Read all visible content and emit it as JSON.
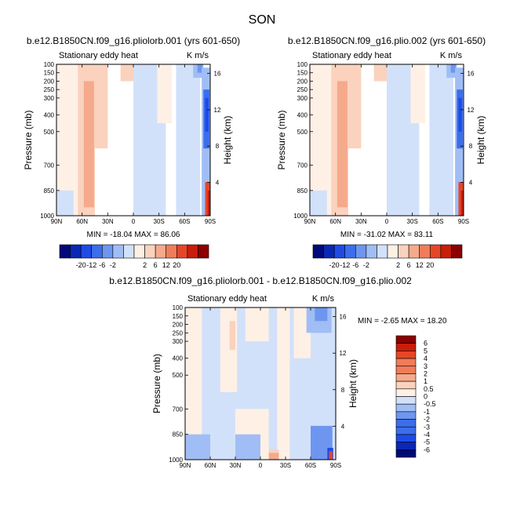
{
  "figure_title": "SON",
  "colormap": [
    "#000a78",
    "#0a28b4",
    "#1e4be6",
    "#3c6eeb",
    "#6e96f0",
    "#a0bef5",
    "#d2e1fa",
    "#fff0e6",
    "#fad2be",
    "#f5aa8c",
    "#f07d5a",
    "#e64628",
    "#c81e0a",
    "#8c0000"
  ],
  "chart_data": [
    {
      "type": "heatmap",
      "name": "panel-pliolorb",
      "title": "b.e12.B1850CN.f09_g16.pliolorb.001 (yrs 601-650)",
      "left_label": "Stationary eddy heat",
      "right_label": "K m/s",
      "ylabel": "Pressure (mb)",
      "ylabel_right": "Height (km)",
      "xticks": [
        "90N",
        "60N",
        "30N",
        "0",
        "30S",
        "60S",
        "90S"
      ],
      "yticks": [
        "100",
        "150",
        "200",
        "250",
        "300",
        "400",
        "500",
        "700",
        "850",
        "1000"
      ],
      "yticks_right": [
        "16",
        "12",
        "8",
        "4"
      ],
      "stats": "MIN = -18.04   MAX = 86.06",
      "colorbar_ticks": [
        "-20",
        "-12",
        "-6",
        "-2",
        "2",
        "6",
        "12",
        "20"
      ],
      "cells": [
        {
          "x": [
            0,
            25
          ],
          "y": [
            100,
            1000
          ],
          "level": 7
        },
        {
          "x": [
            25,
            45
          ],
          "y": [
            100,
            1000
          ],
          "level": 8
        },
        {
          "x": [
            32,
            44
          ],
          "y": [
            200,
            950
          ],
          "level": 9
        },
        {
          "x": [
            45,
            60
          ],
          "y": [
            100,
            600
          ],
          "level": 8
        },
        {
          "x": [
            75,
            100
          ],
          "y": [
            100,
            200
          ],
          "level": 8
        },
        {
          "x": [
            90,
            128
          ],
          "y": [
            100,
            1000
          ],
          "level": 6
        },
        {
          "x": [
            118,
            135
          ],
          "y": [
            100,
            450
          ],
          "level": 7
        },
        {
          "x": [
            140,
            168
          ],
          "y": [
            100,
            1000
          ],
          "level": 6
        },
        {
          "x": [
            160,
            172
          ],
          "y": [
            100,
            180
          ],
          "level": 5
        },
        {
          "x": [
            165,
            171
          ],
          "y": [
            100,
            150
          ],
          "level": 4
        },
        {
          "x": [
            170,
            180
          ],
          "y": [
            120,
            1000
          ],
          "level": 5
        },
        {
          "x": [
            172,
            179
          ],
          "y": [
            250,
            600
          ],
          "level": 3
        },
        {
          "x": [
            174,
            178
          ],
          "y": [
            300,
            500
          ],
          "level": 2
        },
        {
          "x": [
            0,
            20
          ],
          "y": [
            850,
            1000
          ],
          "level": 6
        },
        {
          "x": [
            174,
            180
          ],
          "y": [
            800,
            1000
          ],
          "level": 11
        },
        {
          "x": [
            177,
            180
          ],
          "y": [
            850,
            1000
          ],
          "level": 12
        }
      ]
    },
    {
      "type": "heatmap",
      "name": "panel-plio",
      "title": "b.e12.B1850CN.f09_g16.plio.002 (yrs 601-650)",
      "left_label": "Stationary eddy heat",
      "right_label": "K m/s",
      "ylabel": "Pressure (mb)",
      "ylabel_right": "Height (km)",
      "xticks": [
        "90N",
        "60N",
        "30N",
        "0",
        "30S",
        "60S",
        "90S"
      ],
      "yticks": [
        "100",
        "150",
        "200",
        "250",
        "300",
        "400",
        "500",
        "700",
        "850",
        "1000"
      ],
      "yticks_right": [
        "16",
        "12",
        "8",
        "4"
      ],
      "stats": "MIN = -31.02   MAX = 83.11",
      "colorbar_ticks": [
        "-20",
        "-12",
        "-6",
        "-2",
        "2",
        "6",
        "12",
        "20"
      ],
      "cells": [
        {
          "x": [
            0,
            25
          ],
          "y": [
            100,
            1000
          ],
          "level": 7
        },
        {
          "x": [
            25,
            45
          ],
          "y": [
            100,
            1000
          ],
          "level": 8
        },
        {
          "x": [
            32,
            44
          ],
          "y": [
            200,
            950
          ],
          "level": 9
        },
        {
          "x": [
            45,
            60
          ],
          "y": [
            100,
            600
          ],
          "level": 8
        },
        {
          "x": [
            75,
            100
          ],
          "y": [
            100,
            200
          ],
          "level": 8
        },
        {
          "x": [
            90,
            128
          ],
          "y": [
            100,
            1000
          ],
          "level": 6
        },
        {
          "x": [
            118,
            135
          ],
          "y": [
            100,
            450
          ],
          "level": 7
        },
        {
          "x": [
            140,
            168
          ],
          "y": [
            100,
            1000
          ],
          "level": 6
        },
        {
          "x": [
            160,
            172
          ],
          "y": [
            100,
            180
          ],
          "level": 5
        },
        {
          "x": [
            165,
            171
          ],
          "y": [
            100,
            150
          ],
          "level": 4
        },
        {
          "x": [
            170,
            180
          ],
          "y": [
            120,
            1000
          ],
          "level": 5
        },
        {
          "x": [
            172,
            179
          ],
          "y": [
            250,
            600
          ],
          "level": 3
        },
        {
          "x": [
            174,
            178
          ],
          "y": [
            300,
            500
          ],
          "level": 2
        },
        {
          "x": [
            0,
            20
          ],
          "y": [
            850,
            1000
          ],
          "level": 6
        },
        {
          "x": [
            174,
            180
          ],
          "y": [
            800,
            1000
          ],
          "level": 11
        },
        {
          "x": [
            177,
            180
          ],
          "y": [
            850,
            1000
          ],
          "level": 12
        }
      ]
    },
    {
      "type": "heatmap",
      "name": "panel-difference",
      "title": "b.e12.B1850CN.f09_g16.pliolorb.001 - b.e12.B1850CN.f09_g16.plio.002",
      "left_label": "Stationary eddy heat",
      "right_label": "K m/s",
      "ylabel": "Pressure (mb)",
      "ylabel_right": "Height (km)",
      "xticks": [
        "90N",
        "60N",
        "30N",
        "0",
        "30S",
        "60S",
        "90S"
      ],
      "yticks": [
        "100",
        "150",
        "200",
        "250",
        "300",
        "400",
        "500",
        "700",
        "850",
        "1000"
      ],
      "yticks_right": [
        "16",
        "12",
        "8",
        "4"
      ],
      "stats": "MIN = -2.65   MAX = 18.20",
      "colorbar_ticks": [
        "6",
        "5",
        "4",
        "3",
        "2",
        "1",
        "0.5",
        "0",
        "-0.5",
        "-1",
        "-2",
        "-3",
        "-4",
        "-5",
        "-6"
      ],
      "cells": [
        {
          "x": [
            0,
            180
          ],
          "y": [
            100,
            1000
          ],
          "level": 6
        },
        {
          "x": [
            0,
            20
          ],
          "y": [
            100,
            1000
          ],
          "level": 7
        },
        {
          "x": [
            42,
            62
          ],
          "y": [
            100,
            600
          ],
          "level": 7
        },
        {
          "x": [
            53,
            60
          ],
          "y": [
            180,
            350
          ],
          "level": 8
        },
        {
          "x": [
            72,
            100
          ],
          "y": [
            100,
            300
          ],
          "level": 7
        },
        {
          "x": [
            110,
            125
          ],
          "y": [
            100,
            1000
          ],
          "level": 7
        },
        {
          "x": [
            60,
            100
          ],
          "y": [
            700,
            1000
          ],
          "level": 7
        },
        {
          "x": [
            130,
            150
          ],
          "y": [
            100,
            400
          ],
          "level": 7
        },
        {
          "x": [
            145,
            175
          ],
          "y": [
            100,
            250
          ],
          "level": 5
        },
        {
          "x": [
            155,
            170
          ],
          "y": [
            100,
            180
          ],
          "level": 4
        },
        {
          "x": [
            0,
            30
          ],
          "y": [
            850,
            1000
          ],
          "level": 5
        },
        {
          "x": [
            60,
            90
          ],
          "y": [
            850,
            1000
          ],
          "level": 5
        },
        {
          "x": [
            100,
            112
          ],
          "y": [
            940,
            1000
          ],
          "level": 8
        },
        {
          "x": [
            100,
            112
          ],
          "y": [
            960,
            1000
          ],
          "level": 9
        },
        {
          "x": [
            150,
            176
          ],
          "y": [
            800,
            1000
          ],
          "level": 4
        },
        {
          "x": [
            170,
            177
          ],
          "y": [
            930,
            1000
          ],
          "level": 2
        },
        {
          "x": [
            172,
            176
          ],
          "y": [
            950,
            1000
          ],
          "level": 11
        }
      ]
    }
  ]
}
